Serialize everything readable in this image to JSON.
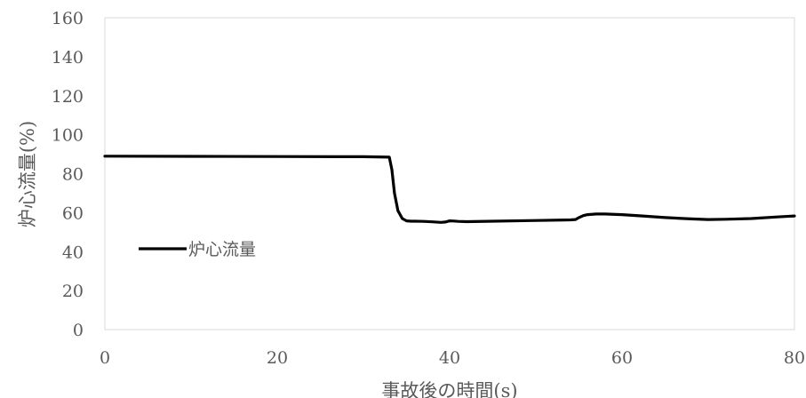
{
  "chart_data": {
    "type": "line",
    "title": "",
    "xlabel": "事故後の時間(s)",
    "ylabel": "炉心流量(%)",
    "xlim": [
      0,
      80
    ],
    "ylim": [
      0,
      160
    ],
    "xticks": [
      0,
      20,
      40,
      60,
      80
    ],
    "yticks": [
      0,
      20,
      40,
      60,
      80,
      100,
      120,
      140,
      160
    ],
    "xtick_labels": [
      "0",
      "20",
      "40",
      "60",
      "80"
    ],
    "ytick_labels": [
      "0",
      "20",
      "40",
      "60",
      "80",
      "100",
      "120",
      "140",
      "160"
    ],
    "grid": false,
    "legend_position": "left",
    "series": [
      {
        "name": "炉心流量",
        "color": "#000000",
        "x": [
          0,
          10,
          20,
          30,
          33,
          33.3,
          33.6,
          34,
          34.5,
          35,
          35.5,
          36,
          37,
          38,
          39,
          39.5,
          40,
          40.5,
          41,
          42,
          45,
          50,
          54,
          54.6,
          55,
          55.5,
          56,
          57,
          58,
          60,
          62,
          65,
          68,
          70,
          72,
          75,
          78,
          80
        ],
        "y": [
          89,
          88.9,
          88.8,
          88.7,
          88.5,
          82,
          70,
          61,
          57,
          55.8,
          55.6,
          55.6,
          55.5,
          55.3,
          55,
          55.2,
          55.8,
          55.7,
          55.5,
          55.4,
          55.6,
          56,
          56.3,
          56.5,
          57.5,
          58.5,
          59,
          59.3,
          59.3,
          59,
          58.4,
          57.5,
          56.8,
          56.5,
          56.6,
          57,
          57.8,
          58.3
        ]
      }
    ]
  }
}
